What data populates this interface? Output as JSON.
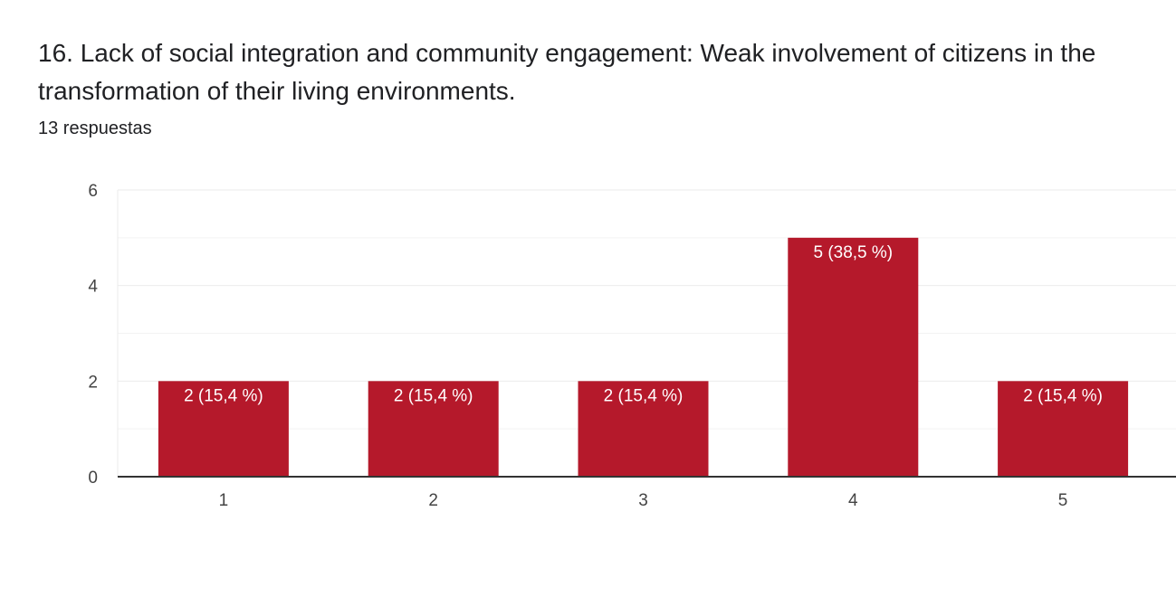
{
  "question": {
    "title": "16.  Lack of social integration and community engagement: Weak involvement of citizens in the transformation of their living environments.",
    "response_count": "13 respuestas"
  },
  "colors": {
    "bar": "#b5192b",
    "grid": "#ebebeb",
    "axis": "#333333",
    "label_text": "#ffffff",
    "tick_text": "#444444"
  },
  "chart_data": {
    "type": "bar",
    "title": "",
    "xlabel": "",
    "ylabel": "",
    "categories": [
      "1",
      "2",
      "3",
      "4",
      "5"
    ],
    "values": [
      2,
      2,
      2,
      5,
      2
    ],
    "data_labels": [
      "2 (15,4 %)",
      "2 (15,4 %)",
      "2 (15,4 %)",
      "5 (38,5 %)",
      "2 (15,4 %)"
    ],
    "y_ticks": [
      "0",
      "2",
      "4",
      "6"
    ],
    "ylim": [
      0,
      6
    ],
    "grid": true,
    "legend": "none"
  }
}
